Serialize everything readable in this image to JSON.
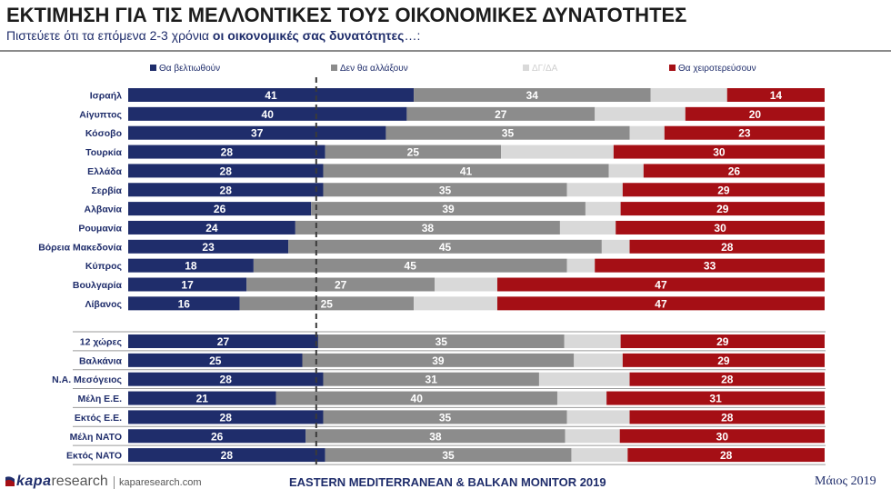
{
  "header": {
    "title": "ΕΚΤΙΜΗΣΗ ΓΙΑ ΤΙΣ ΜΕΛΛΟΝΤΙΚΕΣ ΤΟΥΣ ΟΙΚΟΝΟΜΙΚΕΣ ΔΥΝΑΤΟΤΗΤΕΣ",
    "subtitle_prefix": "Πιστεύετε ότι τα επόμενα 2-3 χρόνια ",
    "subtitle_bold": "οι οικονομικές σας δυνατότητες",
    "subtitle_suffix": "…:"
  },
  "footer": {
    "logo_kapa": "kapa",
    "logo_research": "research",
    "site": "kaparesearch.com",
    "center": "EASTERN MEDITERRANEAN & BALKAN MONITOR 2019",
    "date": "Μάιος 2019"
  },
  "colors": {
    "improve": "#1f2d6b",
    "same": "#8c8c8c",
    "dk": "#d9d9d9",
    "worse": "#a50f15"
  },
  "chart_data": {
    "type": "bar",
    "orientation": "horizontal-stacked",
    "legend_position": "top",
    "series": [
      {
        "name": "Θα βελτιωθούν",
        "values": [
          41,
          40,
          37,
          28,
          28,
          28,
          26,
          24,
          23,
          18,
          17,
          16,
          27,
          25,
          28,
          21,
          28,
          26,
          28
        ]
      },
      {
        "name": "Δεν θα αλλάξουν",
        "values": [
          34,
          27,
          35,
          25,
          41,
          35,
          39,
          38,
          45,
          45,
          27,
          25,
          35,
          39,
          31,
          40,
          35,
          38,
          35
        ]
      },
      {
        "name": "ΔΓ/ΔΑ",
        "values": [
          11,
          13,
          5,
          16,
          5,
          8,
          5,
          8,
          4,
          4,
          9,
          12,
          8,
          7,
          13,
          7,
          9,
          8,
          8
        ]
      },
      {
        "name": "Θα χειροτερεύσουν",
        "values": [
          14,
          20,
          23,
          30,
          26,
          29,
          29,
          30,
          28,
          33,
          47,
          47,
          29,
          29,
          28,
          31,
          28,
          30,
          28
        ]
      }
    ],
    "labeled_series": [
      0,
      1,
      3
    ],
    "categories": [
      "Ισραήλ",
      "Αίγυπτος",
      "Κόσοβο",
      "Τουρκία",
      "Ελλάδα",
      "Σερβία",
      "Αλβανία",
      "Ρουμανία",
      "Βόρεια Μακεδονία",
      "Κύπρος",
      "Βουλγαρία",
      "Λίβανος",
      "12 χώρες",
      "Βαλκάνια",
      "Ν.Α. Μεσόγειος",
      "Μέλη Ε.Ε.",
      "Εκτός Ε.Ε.",
      "Μέλη ΝΑΤΟ",
      "Εκτός ΝΑΤΟ"
    ],
    "groups": [
      {
        "start": 0,
        "end": 11
      },
      {
        "start": 12,
        "end": 18
      }
    ],
    "reference_line_value": 27
  }
}
